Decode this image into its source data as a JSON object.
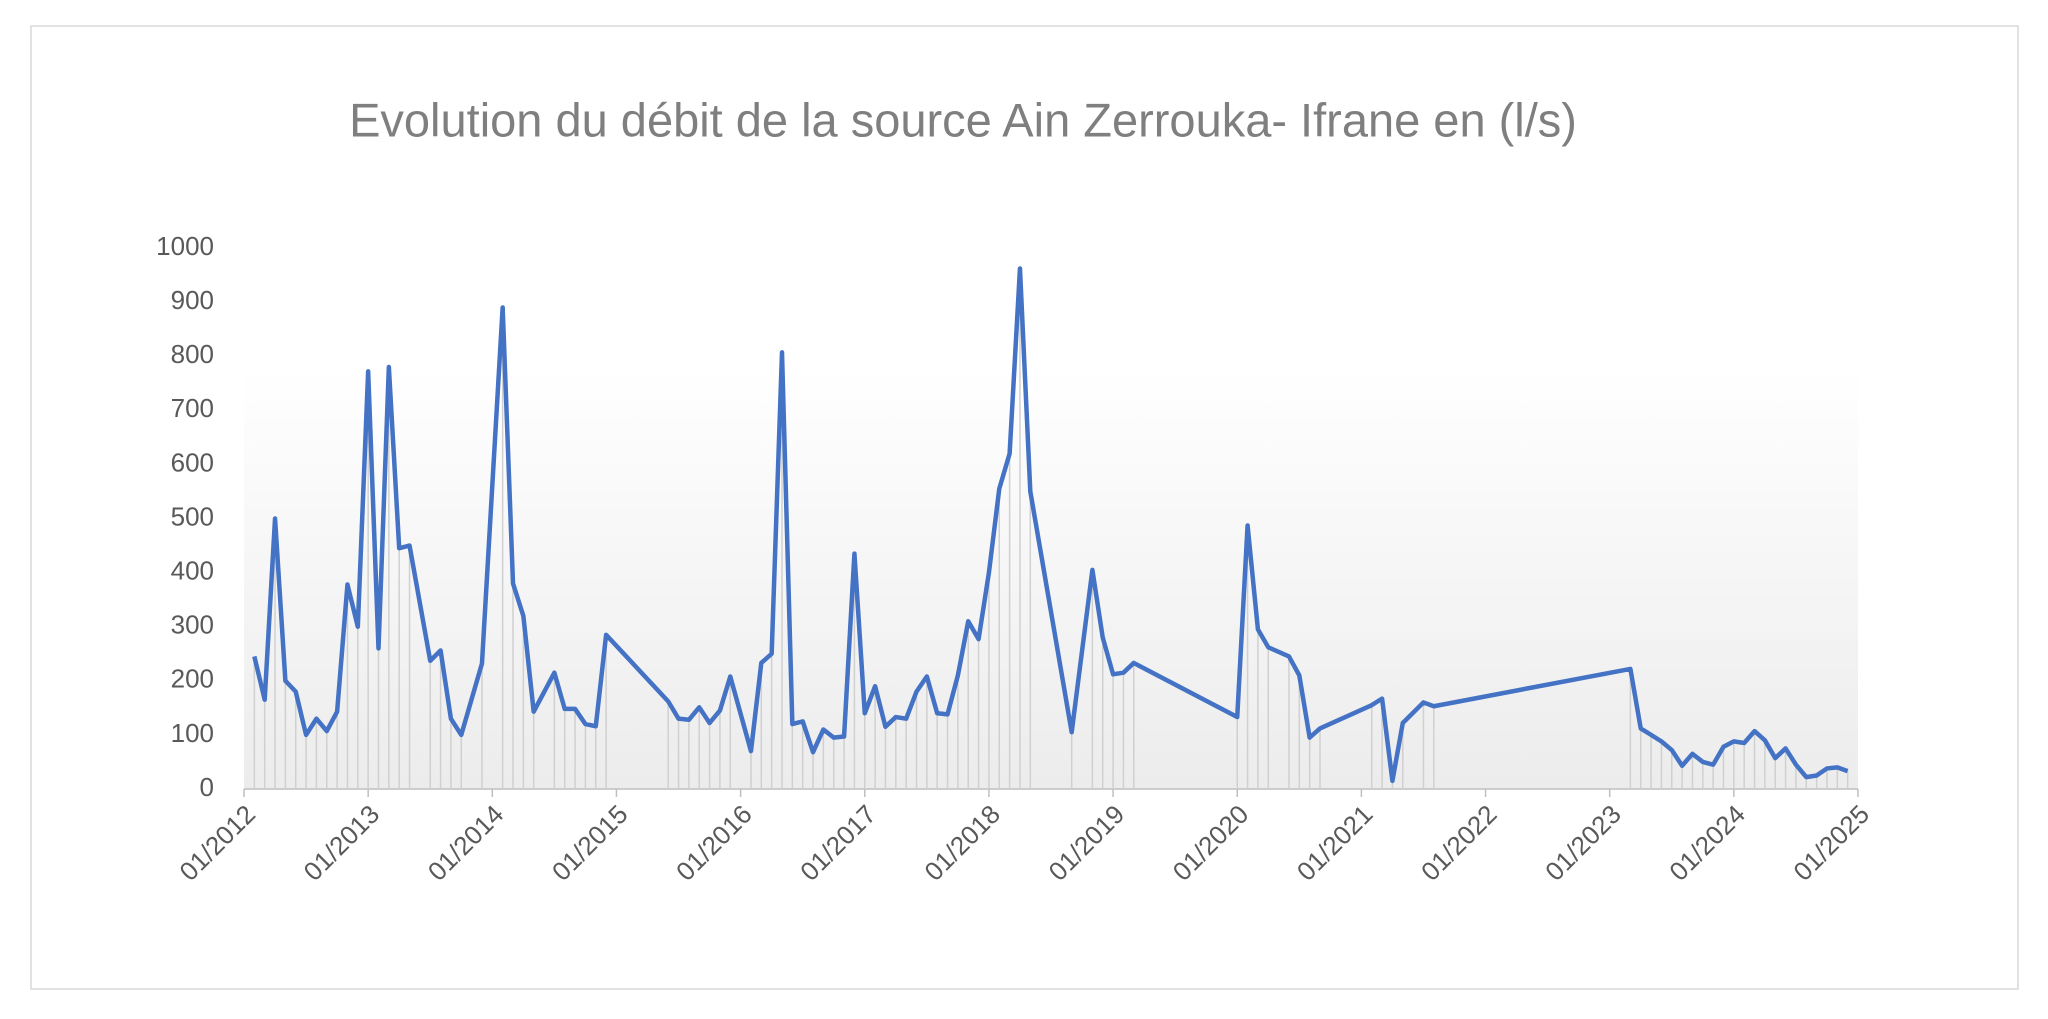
{
  "chart_data": {
    "type": "line",
    "title": "Evolution du débit de la source Ain Zerrouka- Ifrane en (l/s)",
    "x": [
      "02/2012",
      "03/2012",
      "04/2012",
      "05/2012",
      "06/2012",
      "07/2012",
      "08/2012",
      "09/2012",
      "10/2012",
      "11/2012",
      "12/2012",
      "01/2013",
      "02/2013",
      "03/2013",
      "04/2013",
      "05/2013",
      "07/2013",
      "08/2013",
      "09/2013",
      "10/2013",
      "12/2013",
      "02/2014",
      "03/2014",
      "04/2014",
      "05/2014",
      "07/2014",
      "08/2014",
      "09/2014",
      "10/2014",
      "11/2014",
      "12/2014",
      "06/2015",
      "07/2015",
      "08/2015",
      "09/2015",
      "10/2015",
      "11/2015",
      "12/2015",
      "02/2016",
      "03/2016",
      "04/2016",
      "05/2016",
      "06/2016",
      "07/2016",
      "08/2016",
      "09/2016",
      "10/2016",
      "11/2016",
      "12/2016",
      "01/2017",
      "02/2017",
      "03/2017",
      "04/2017",
      "05/2017",
      "06/2017",
      "07/2017",
      "08/2017",
      "09/2017",
      "10/2017",
      "11/2017",
      "12/2017",
      "01/2018",
      "02/2018",
      "03/2018",
      "04/2018",
      "05/2018",
      "09/2018",
      "11/2018",
      "12/2018",
      "01/2019",
      "02/2019",
      "03/2019",
      "01/2020",
      "02/2020",
      "03/2020",
      "04/2020",
      "06/2020",
      "07/2020",
      "08/2020",
      "09/2020",
      "02/2021",
      "03/2021",
      "04/2021",
      "05/2021",
      "07/2021",
      "08/2021",
      "03/2023",
      "04/2023",
      "05/2023",
      "06/2023",
      "07/2023",
      "08/2023",
      "09/2023",
      "10/2023",
      "11/2023",
      "12/2023",
      "01/2024",
      "02/2024",
      "03/2024",
      "04/2024",
      "05/2024",
      "06/2024",
      "07/2024",
      "08/2024",
      "09/2024",
      "10/2024",
      "11/2024",
      "12/2024"
    ],
    "series": [
      {
        "color": "#4472c4",
        "values": [
          245,
          165,
          500,
          200,
          180,
          100,
          130,
          107,
          143,
          378,
          300,
          772,
          260,
          780,
          445,
          450,
          237,
          256,
          130,
          100,
          232,
          890,
          380,
          320,
          143,
          215,
          148,
          148,
          120,
          116,
          285,
          162,
          130,
          128,
          151,
          122,
          145,
          208,
          70,
          233,
          250,
          807,
          120,
          125,
          68,
          110,
          95,
          97,
          435,
          140,
          190,
          115,
          133,
          130,
          180,
          208,
          140,
          138,
          210,
          310,
          277,
          400,
          555,
          620,
          962,
          550,
          105,
          405,
          280,
          212,
          215,
          233,
          133,
          487,
          295,
          262,
          245,
          210,
          95,
          112,
          155,
          167,
          15,
          122,
          160,
          153,
          222,
          112,
          100,
          88,
          72,
          43,
          65,
          50,
          45,
          78,
          88,
          85,
          107,
          90,
          57,
          75,
          45,
          22,
          25,
          38,
          40,
          33
        ]
      }
    ],
    "xlim": [
      "01/2012",
      "01/2025"
    ],
    "xticks": [
      "01/2012",
      "01/2013",
      "01/2014",
      "01/2015",
      "01/2016",
      "01/2017",
      "01/2018",
      "01/2019",
      "01/2020",
      "01/2021",
      "01/2022",
      "01/2023",
      "01/2024",
      "01/2025"
    ],
    "ylim": [
      0,
      1000
    ],
    "yticks": [
      0,
      100,
      200,
      300,
      400,
      500,
      600,
      700,
      800,
      900,
      1000
    ],
    "drop_lines": true
  }
}
